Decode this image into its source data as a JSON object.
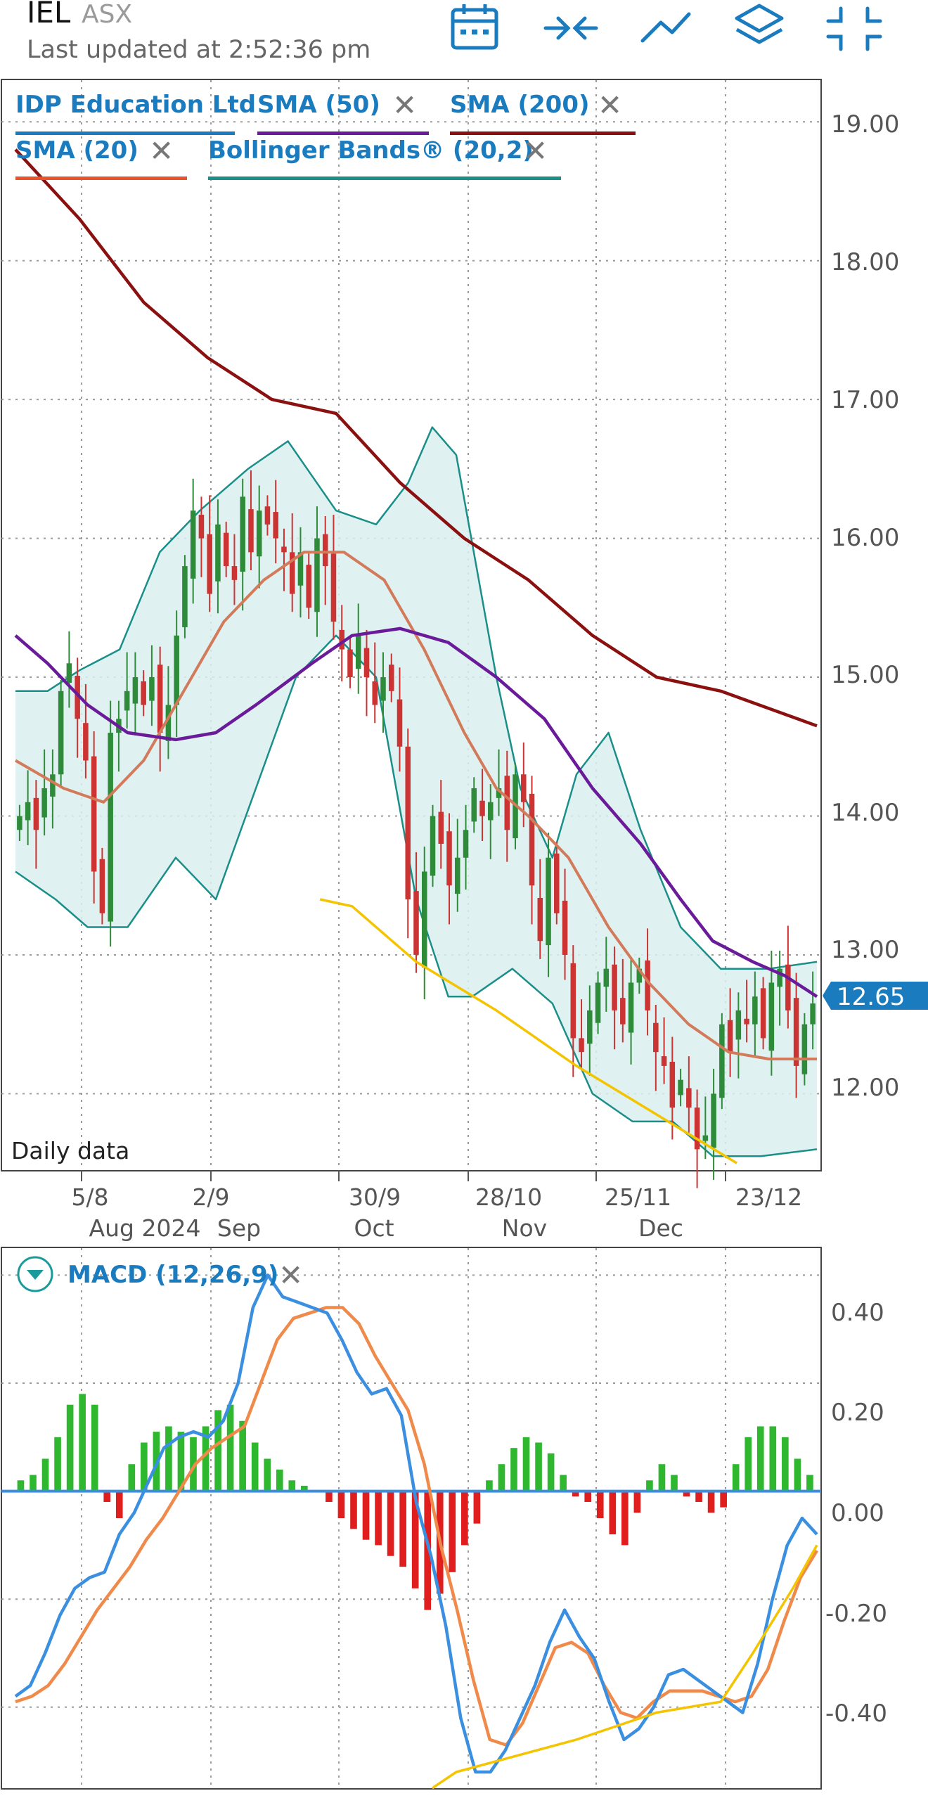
{
  "header": {
    "ticker": "IEL",
    "exchange": "ASX",
    "updated": "Last updated at 2:52:36 pm",
    "icons": [
      "calendar-icon",
      "compress-arrows-icon",
      "line-chart-icon",
      "layers-icon",
      "minimize-icon"
    ],
    "accent_color": "#1a7bbf"
  },
  "price_panel": {
    "legend": [
      {
        "label": "IDP Education Ltd",
        "color": "#1a7bbf",
        "removable": false
      },
      {
        "label": "SMA (50)",
        "color": "#6a1b9a",
        "removable": true
      },
      {
        "label": "SMA (200)",
        "color": "#8b1010",
        "removable": true
      },
      {
        "label": "SMA (20)",
        "color": "#e8532c",
        "removable": true
      },
      {
        "label": "Bollinger Bands® (20,2)",
        "color": "#1a8f8a",
        "removable": true
      }
    ],
    "remove_glyph": "✕",
    "daily_label": "Daily data",
    "last_price": "12.65",
    "x_tick_labels": [
      {
        "top": "5/8",
        "bottom": "Aug 2024"
      },
      {
        "top": "2/9",
        "bottom": "Sep"
      },
      {
        "top": "30/9",
        "bottom": "Oct"
      },
      {
        "top": "28/10",
        "bottom": "Nov"
      },
      {
        "top": "25/11",
        "bottom": "Dec"
      },
      {
        "top": "23/12",
        "bottom": ""
      }
    ],
    "y_tick_labels": [
      "19.00",
      "18.00",
      "17.00",
      "16.00",
      "15.00",
      "14.00",
      "13.00",
      "12.00"
    ]
  },
  "macd_panel": {
    "label": "MACD (12,26,9)",
    "remove_glyph": "✕",
    "y_tick_labels": [
      "0.40",
      "0.20",
      "0.00",
      "-0.20",
      "-0.40"
    ]
  },
  "chart_data": [
    {
      "type": "candlestick",
      "title": "IDP Education Ltd",
      "ylim": [
        11.45,
        19.3
      ],
      "y_ticks": [
        12,
        13,
        14,
        15,
        16,
        17,
        18,
        19
      ],
      "last_close": 12.65,
      "grid": true,
      "up_color": "#2e8b3a",
      "down_color": "#cc3333",
      "close_series": [
        14,
        14.1,
        13.9,
        14.2,
        14.3,
        14.9,
        15.1,
        14.7,
        14.4,
        13.6,
        13.3,
        14.6,
        14.7,
        14.9,
        15.0,
        14.8,
        15.0,
        14.6,
        14.8,
        15.3,
        15.8,
        16.2,
        16.0,
        15.6,
        16.1,
        15.8,
        15.7,
        16.3,
        15.9,
        16.2,
        16.1,
        16.0,
        15.9,
        15.6,
        15.9,
        15.5,
        16.0,
        15.8,
        15.4,
        15.2,
        15.0,
        15.3,
        15.0,
        14.8,
        15.0,
        14.9,
        14.5,
        13.4,
        13.0,
        13.6,
        14.0,
        13.8,
        13.5,
        13.7,
        13.9,
        14.2,
        14.0,
        14.1,
        14.2,
        13.9,
        14.3,
        14.1,
        13.5,
        13.1,
        13.7,
        13.3,
        13.0,
        12.4,
        12.3,
        12.6,
        12.8,
        12.9,
        12.6,
        12.5,
        12.8,
        12.9,
        12.6,
        12.3,
        12.2,
        11.9,
        12.1,
        11.9,
        11.6,
        11.7,
        12.0,
        12.5,
        12.3,
        12.6,
        12.5,
        12.7,
        12.4,
        12.8,
        12.9,
        12.6,
        12.2,
        12.5,
        12.65
      ],
      "series": [
        {
          "name": "SMA (200)",
          "color": "#8b1010",
          "points": [
            [
              0,
              18.8
            ],
            [
              0.08,
              18.3
            ],
            [
              0.16,
              17.7
            ],
            [
              0.24,
              17.3
            ],
            [
              0.32,
              17.0
            ],
            [
              0.4,
              16.9
            ],
            [
              0.48,
              16.4
            ],
            [
              0.56,
              16.0
            ],
            [
              0.64,
              15.7
            ],
            [
              0.72,
              15.3
            ],
            [
              0.8,
              15.0
            ],
            [
              0.88,
              14.9
            ],
            [
              1,
              14.65
            ]
          ]
        },
        {
          "name": "SMA (50)",
          "color": "#6a1b9a",
          "points": [
            [
              0,
              15.3
            ],
            [
              0.04,
              15.1
            ],
            [
              0.09,
              14.8
            ],
            [
              0.14,
              14.6
            ],
            [
              0.2,
              14.55
            ],
            [
              0.25,
              14.6
            ],
            [
              0.3,
              14.8
            ],
            [
              0.37,
              15.1
            ],
            [
              0.42,
              15.3
            ],
            [
              0.48,
              15.35
            ],
            [
              0.54,
              15.25
            ],
            [
              0.6,
              15.0
            ],
            [
              0.66,
              14.7
            ],
            [
              0.72,
              14.2
            ],
            [
              0.78,
              13.8
            ],
            [
              0.83,
              13.4
            ],
            [
              0.87,
              13.1
            ],
            [
              0.92,
              12.95
            ],
            [
              0.96,
              12.85
            ],
            [
              1,
              12.7
            ]
          ]
        },
        {
          "name": "SMA (20)",
          "color": "#d27a5a",
          "points": [
            [
              0,
              14.4
            ],
            [
              0.06,
              14.2
            ],
            [
              0.11,
              14.1
            ],
            [
              0.16,
              14.4
            ],
            [
              0.21,
              14.9
            ],
            [
              0.26,
              15.4
            ],
            [
              0.31,
              15.7
            ],
            [
              0.36,
              15.9
            ],
            [
              0.41,
              15.9
            ],
            [
              0.46,
              15.7
            ],
            [
              0.51,
              15.2
            ],
            [
              0.56,
              14.6
            ],
            [
              0.6,
              14.2
            ],
            [
              0.64,
              14.0
            ],
            [
              0.69,
              13.7
            ],
            [
              0.74,
              13.2
            ],
            [
              0.79,
              12.8
            ],
            [
              0.84,
              12.5
            ],
            [
              0.89,
              12.3
            ],
            [
              0.94,
              12.25
            ],
            [
              1,
              12.25
            ]
          ]
        },
        {
          "name": "Bollinger upper",
          "color": "#1a8f8a",
          "points": [
            [
              0,
              14.9
            ],
            [
              0.04,
              14.9
            ],
            [
              0.08,
              15.05
            ],
            [
              0.13,
              15.2
            ],
            [
              0.18,
              15.9
            ],
            [
              0.23,
              16.2
            ],
            [
              0.29,
              16.5
            ],
            [
              0.34,
              16.7
            ],
            [
              0.4,
              16.2
            ],
            [
              0.45,
              16.1
            ],
            [
              0.49,
              16.4
            ],
            [
              0.52,
              16.8
            ],
            [
              0.55,
              16.6
            ],
            [
              0.6,
              15.0
            ],
            [
              0.63,
              14.2
            ],
            [
              0.67,
              13.7
            ],
            [
              0.7,
              14.3
            ],
            [
              0.74,
              14.6
            ],
            [
              0.78,
              13.9
            ],
            [
              0.83,
              13.2
            ],
            [
              0.88,
              12.9
            ],
            [
              0.94,
              12.9
            ],
            [
              1,
              12.95
            ]
          ]
        },
        {
          "name": "Bollinger lower",
          "color": "#1a8f8a",
          "points": [
            [
              0,
              13.6
            ],
            [
              0.05,
              13.4
            ],
            [
              0.09,
              13.2
            ],
            [
              0.14,
              13.2
            ],
            [
              0.2,
              13.7
            ],
            [
              0.25,
              13.4
            ],
            [
              0.3,
              14.2
            ],
            [
              0.35,
              15.0
            ],
            [
              0.4,
              15.3
            ],
            [
              0.45,
              15.0
            ],
            [
              0.5,
              13.4
            ],
            [
              0.54,
              12.7
            ],
            [
              0.57,
              12.7
            ],
            [
              0.62,
              12.9
            ],
            [
              0.67,
              12.65
            ],
            [
              0.72,
              12.0
            ],
            [
              0.77,
              11.8
            ],
            [
              0.82,
              11.8
            ],
            [
              0.87,
              11.55
            ],
            [
              0.93,
              11.55
            ],
            [
              1,
              11.6
            ]
          ]
        },
        {
          "name": "trend line",
          "color": "#f5c400",
          "points": [
            [
              0.38,
              13.4
            ],
            [
              0.42,
              13.35
            ],
            [
              0.5,
              12.95
            ],
            [
              0.6,
              12.6
            ],
            [
              0.7,
              12.2
            ],
            [
              0.8,
              11.85
            ],
            [
              0.9,
              11.5
            ]
          ]
        }
      ]
    },
    {
      "type": "macd",
      "title": "MACD (12,26,9)",
      "ylim": [
        -0.55,
        0.45
      ],
      "y_ticks": [
        0.4,
        0.2,
        0,
        -0.2,
        -0.4
      ],
      "macd_line": [
        -0.38,
        -0.36,
        -0.3,
        -0.23,
        -0.18,
        -0.16,
        -0.15,
        -0.08,
        -0.04,
        0.02,
        0.08,
        0.1,
        0.11,
        0.1,
        0.13,
        0.2,
        0.34,
        0.4,
        0.36,
        0.35,
        0.34,
        0.33,
        0.28,
        0.22,
        0.18,
        0.19,
        0.14,
        -0.02,
        -0.12,
        -0.25,
        -0.42,
        -0.52,
        -0.52,
        -0.48,
        -0.42,
        -0.36,
        -0.28,
        -0.22,
        -0.27,
        -0.31,
        -0.39,
        -0.46,
        -0.44,
        -0.4,
        -0.34,
        -0.33,
        -0.35,
        -0.37,
        -0.39,
        -0.41,
        -0.32,
        -0.2,
        -0.1,
        -0.05,
        -0.08
      ],
      "signal_line": [
        -0.39,
        -0.38,
        -0.36,
        -0.32,
        -0.27,
        -0.22,
        -0.18,
        -0.14,
        -0.09,
        -0.05,
        0.0,
        0.05,
        0.08,
        0.1,
        0.12,
        0.2,
        0.28,
        0.32,
        0.33,
        0.34,
        0.34,
        0.31,
        0.25,
        0.2,
        0.15,
        0.05,
        -0.1,
        -0.22,
        -0.35,
        -0.46,
        -0.47,
        -0.43,
        -0.36,
        -0.29,
        -0.28,
        -0.3,
        -0.36,
        -0.41,
        -0.42,
        -0.39,
        -0.37,
        -0.37,
        -0.37,
        -0.38,
        -0.39,
        -0.38,
        -0.33,
        -0.24,
        -0.16,
        -0.11
      ],
      "histogram": [
        0.02,
        0.03,
        0.06,
        0.1,
        0.16,
        0.18,
        0.16,
        -0.02,
        -0.05,
        0.05,
        0.09,
        0.11,
        0.12,
        0.11,
        0.1,
        0.12,
        0.15,
        0.16,
        0.13,
        0.09,
        0.06,
        0.04,
        0.02,
        0.01,
        0.0,
        -0.02,
        -0.05,
        -0.07,
        -0.09,
        -0.1,
        -0.12,
        -0.14,
        -0.18,
        -0.22,
        -0.19,
        -0.15,
        -0.1,
        -0.06,
        0.02,
        0.05,
        0.08,
        0.1,
        0.09,
        0.07,
        0.03,
        -0.01,
        -0.02,
        -0.05,
        -0.08,
        -0.1,
        -0.04,
        0.02,
        0.05,
        0.03,
        -0.01,
        -0.02,
        -0.04,
        -0.03,
        0.05,
        0.1,
        0.12,
        0.12,
        0.1,
        0.06,
        0.03
      ],
      "trend_line": [
        [
          0.52,
          -0.55
        ],
        [
          0.55,
          -0.52
        ],
        [
          0.7,
          -0.46
        ],
        [
          0.8,
          -0.41
        ],
        [
          0.88,
          -0.39
        ],
        [
          0.92,
          -0.3
        ],
        [
          0.97,
          -0.18
        ],
        [
          1,
          -0.1
        ]
      ],
      "colors": {
        "macd": "#3b8fe0",
        "signal": "#f08a4b",
        "hist_up": "#2fb82f",
        "hist_down": "#e01e1e",
        "zero": "#3b8fe0",
        "trend": "#f5c400"
      }
    }
  ]
}
